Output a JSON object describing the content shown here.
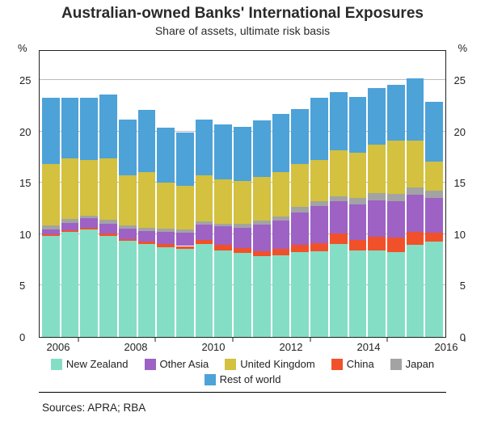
{
  "chart": {
    "type": "stacked-bar",
    "title": "Australian-owned Banks' International Exposures",
    "title_fontsize": 19,
    "subtitle": "Share of assets, ultimate risk basis",
    "subtitle_fontsize": 14,
    "sources_label": "Sources:  APRA; RBA",
    "y_unit_left": "%",
    "y_unit_right": "%",
    "ylim": [
      0,
      28
    ],
    "yticks": [
      0,
      5,
      10,
      15,
      20,
      25
    ],
    "grid_color": "#bcbcbc",
    "axis_color": "#222222",
    "background_color": "#ffffff",
    "tick_fontsize": 13,
    "x_years": [
      2006,
      2008,
      2010,
      2012,
      2014,
      2016
    ],
    "n_bars": 21,
    "series_order": [
      "nz",
      "china",
      "other_asia",
      "japan",
      "uk",
      "rest"
    ],
    "series": {
      "nz": {
        "label": "New Zealand",
        "color": "#84dec6"
      },
      "china": {
        "label": "China",
        "color": "#f1512a"
      },
      "other_asia": {
        "label": "Other Asia",
        "color": "#9d62c4"
      },
      "japan": {
        "label": "Japan",
        "color": "#a3a3a3"
      },
      "uk": {
        "label": "United Kingdom",
        "color": "#d3c13f"
      },
      "rest": {
        "label": "Rest of world",
        "color": "#4da2d8"
      }
    },
    "legend_layout": [
      [
        "nz",
        "other_asia",
        "uk"
      ],
      [
        "china",
        "japan",
        "rest"
      ]
    ],
    "data": [
      {
        "nz": 9.9,
        "china": 0.15,
        "other_asia": 0.5,
        "japan": 0.4,
        "uk": 6.0,
        "rest": 6.45
      },
      {
        "nz": 10.3,
        "china": 0.15,
        "other_asia": 0.7,
        "japan": 0.4,
        "uk": 5.9,
        "rest": 5.95
      },
      {
        "nz": 10.5,
        "china": 0.2,
        "other_asia": 0.9,
        "japan": 0.3,
        "uk": 5.4,
        "rest": 6.1
      },
      {
        "nz": 9.9,
        "china": 0.25,
        "other_asia": 0.9,
        "japan": 0.4,
        "uk": 6.0,
        "rest": 6.25
      },
      {
        "nz": 9.4,
        "china": 0.2,
        "other_asia": 1.0,
        "japan": 0.3,
        "uk": 4.9,
        "rest": 5.5
      },
      {
        "nz": 9.1,
        "china": 0.2,
        "other_asia": 1.1,
        "japan": 0.3,
        "uk": 5.4,
        "rest": 6.1
      },
      {
        "nz": 8.8,
        "china": 0.3,
        "other_asia": 1.2,
        "japan": 0.3,
        "uk": 4.5,
        "rest": 5.4
      },
      {
        "nz": 8.6,
        "china": 0.3,
        "other_asia": 1.3,
        "japan": 0.3,
        "uk": 4.3,
        "rest": 5.2
      },
      {
        "nz": 9.1,
        "china": 0.4,
        "other_asia": 1.5,
        "japan": 0.3,
        "uk": 4.5,
        "rest": 5.5
      },
      {
        "nz": 8.5,
        "china": 0.5,
        "other_asia": 1.8,
        "japan": 0.3,
        "uk": 4.3,
        "rest": 5.4
      },
      {
        "nz": 8.2,
        "china": 0.5,
        "other_asia": 2.0,
        "japan": 0.4,
        "uk": 4.2,
        "rest": 5.3
      },
      {
        "nz": 7.9,
        "china": 0.5,
        "other_asia": 2.6,
        "japan": 0.4,
        "uk": 4.3,
        "rest": 5.5
      },
      {
        "nz": 8.0,
        "china": 0.6,
        "other_asia": 2.8,
        "japan": 0.4,
        "uk": 4.3,
        "rest": 5.7
      },
      {
        "nz": 8.3,
        "china": 0.7,
        "other_asia": 3.2,
        "japan": 0.5,
        "uk": 4.2,
        "rest": 5.4
      },
      {
        "nz": 8.4,
        "china": 0.8,
        "other_asia": 3.6,
        "japan": 0.5,
        "uk": 4.0,
        "rest": 6.1
      },
      {
        "nz": 9.1,
        "china": 1.0,
        "other_asia": 3.2,
        "japan": 0.5,
        "uk": 4.5,
        "rest": 5.7
      },
      {
        "nz": 8.5,
        "china": 1.0,
        "other_asia": 3.5,
        "japan": 0.6,
        "uk": 4.4,
        "rest": 5.5
      },
      {
        "nz": 8.5,
        "china": 1.3,
        "other_asia": 3.6,
        "japan": 0.7,
        "uk": 4.7,
        "rest": 5.6
      },
      {
        "nz": 8.3,
        "china": 1.4,
        "other_asia": 3.6,
        "japan": 0.7,
        "uk": 5.2,
        "rest": 5.5
      },
      {
        "nz": 9.0,
        "china": 1.3,
        "other_asia": 3.6,
        "japan": 0.7,
        "uk": 4.6,
        "rest": 6.1
      },
      {
        "nz": 9.3,
        "china": 0.9,
        "other_asia": 3.4,
        "japan": 0.7,
        "uk": 2.9,
        "rest": 5.8
      }
    ]
  }
}
